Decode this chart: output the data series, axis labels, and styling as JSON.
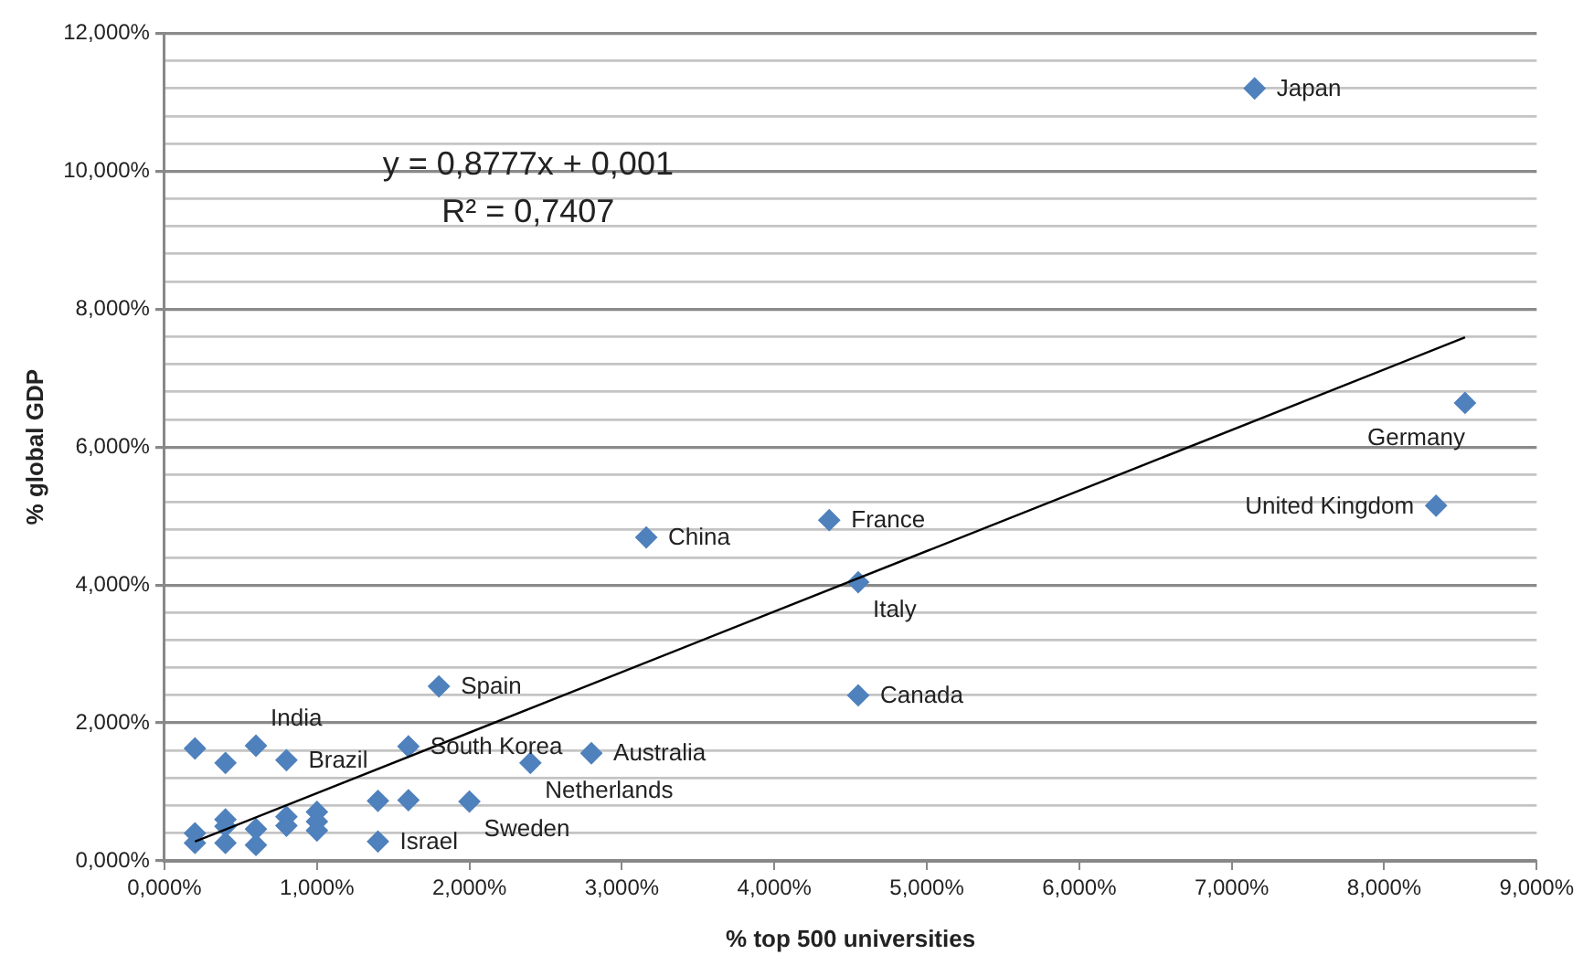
{
  "chart_data": {
    "type": "scatter",
    "xlabel": "% top 500 universities",
    "ylabel": "% global GDP",
    "series": [
      {
        "color": "#4f81bd",
        "marker": "diamond",
        "x": [
          0.2,
          0.4,
          0.6,
          0.8,
          1.6,
          1.8,
          2.4,
          2.8,
          2.0,
          1.6,
          1.4,
          1.4,
          1.0,
          1.0,
          1.0,
          0.8,
          0.8,
          0.6,
          0.6,
          0.4,
          0.4,
          0.4,
          0.2,
          0.2,
          7.15,
          8.53,
          8.34,
          4.36,
          4.55,
          4.55,
          3.16
        ],
        "values": [
          1.63,
          1.42,
          1.67,
          1.46,
          1.66,
          2.53,
          1.42,
          1.56,
          0.86,
          0.88,
          0.87,
          0.28,
          0.71,
          0.57,
          0.44,
          0.64,
          0.51,
          0.46,
          0.23,
          0.6,
          0.5,
          0.26,
          0.4,
          0.26,
          11.2,
          6.64,
          5.15,
          4.94,
          4.04,
          2.4,
          4.69
        ]
      },
      {
        "type": "line",
        "color": "#000000",
        "marker": "none",
        "x": [
          0.2,
          8.53
        ],
        "values": [
          0.28,
          7.59
        ]
      }
    ],
    "xlim": [
      0,
      9
    ],
    "xticks": [
      {
        "value": 0,
        "label": "0,000%"
      },
      {
        "value": 1,
        "label": "1,000%"
      },
      {
        "value": 2,
        "label": "2,000%"
      },
      {
        "value": 3,
        "label": "3,000%"
      },
      {
        "value": 4,
        "label": "4,000%"
      },
      {
        "value": 5,
        "label": "5,000%"
      },
      {
        "value": 6,
        "label": "6,000%"
      },
      {
        "value": 7,
        "label": "7,000%"
      },
      {
        "value": 8,
        "label": "8,000%"
      },
      {
        "value": 9,
        "label": "9,000%"
      }
    ],
    "ylim": [
      0,
      12
    ],
    "yticks": [
      {
        "value": 0,
        "label": "0,000%"
      },
      {
        "value": 0.4,
        "label": null
      },
      {
        "value": 0.8,
        "label": null
      },
      {
        "value": 1.2,
        "label": null
      },
      {
        "value": 1.6,
        "label": null
      },
      {
        "value": 2,
        "label": "2,000%"
      },
      {
        "value": 2.4,
        "label": null
      },
      {
        "value": 2.8,
        "label": null
      },
      {
        "value": 3.2,
        "label": null
      },
      {
        "value": 3.6,
        "label": null
      },
      {
        "value": 4,
        "label": "4,000%"
      },
      {
        "value": 4.4,
        "label": null
      },
      {
        "value": 4.8,
        "label": null
      },
      {
        "value": 5.2,
        "label": null
      },
      {
        "value": 5.6,
        "label": null
      },
      {
        "value": 6,
        "label": "6,000%"
      },
      {
        "value": 6.4,
        "label": null
      },
      {
        "value": 6.8,
        "label": null
      },
      {
        "value": 7.2,
        "label": null
      },
      {
        "value": 7.6,
        "label": null
      },
      {
        "value": 8,
        "label": "8,000%"
      },
      {
        "value": 8.4,
        "label": null
      },
      {
        "value": 8.8,
        "label": null
      },
      {
        "value": 9.2,
        "label": null
      },
      {
        "value": 9.6,
        "label": null
      },
      {
        "value": 10,
        "label": "10,000%"
      },
      {
        "value": 10.4,
        "label": null
      },
      {
        "value": 10.8,
        "label": null
      },
      {
        "value": 11.2,
        "label": null
      },
      {
        "value": 11.6,
        "label": null
      },
      {
        "value": 12,
        "label": "12,000%"
      }
    ],
    "grid": "y",
    "legend": false,
    "annotations": [
      "y = 0,8777x + 0,001",
      "R² = 0,7407",
      {
        "text": "Japan",
        "x": 7.15,
        "y": 11.2
      },
      {
        "text": "Germany",
        "x": 8.53,
        "y": 6.64
      },
      {
        "text": "United Kingdom",
        "x": 8.34,
        "y": 5.15
      },
      {
        "text": "France",
        "x": 4.36,
        "y": 4.94
      },
      {
        "text": "China",
        "x": 3.16,
        "y": 4.69
      },
      {
        "text": "Italy",
        "x": 4.55,
        "y": 4.04
      },
      {
        "text": "Canada",
        "x": 4.55,
        "y": 2.4
      },
      {
        "text": "Spain",
        "x": 1.8,
        "y": 2.53
      },
      {
        "text": "India",
        "x": 0.6,
        "y": 1.67
      },
      {
        "text": "Brazil",
        "x": 0.8,
        "y": 1.46
      },
      {
        "text": "South Korea",
        "x": 1.6,
        "y": 1.66
      },
      {
        "text": "Australia",
        "x": 2.8,
        "y": 1.56
      },
      {
        "text": "Netherlands",
        "x": 2.4,
        "y": 1.42
      },
      {
        "text": "Sweden",
        "x": 2.0,
        "y": 0.86
      },
      {
        "text": "Israel",
        "x": 1.4,
        "y": 0.28
      }
    ]
  }
}
